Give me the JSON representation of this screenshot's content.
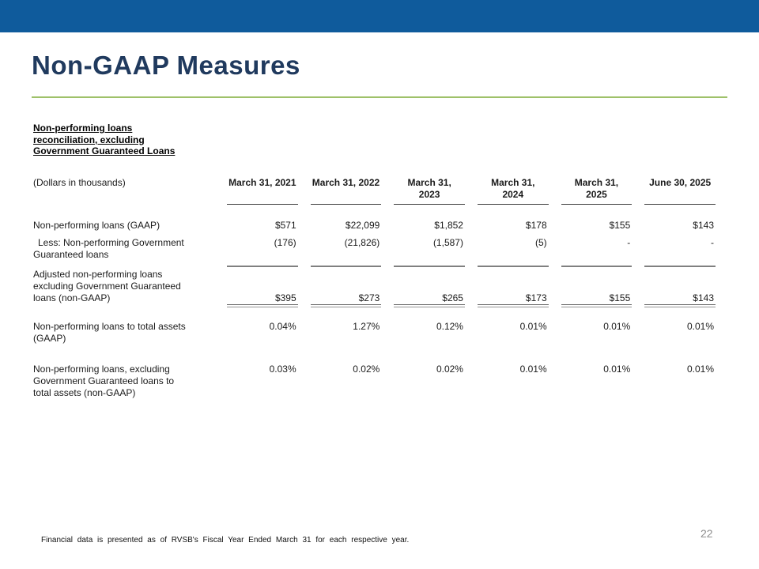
{
  "slide": {
    "title": "Non-GAAP Measures",
    "page_number": "22",
    "footnote": "Financial data is presented as of RVSB's Fiscal Year Ended March 31 for each respective year.",
    "colors": {
      "top_bar": "#0f5b9c",
      "title": "#203a5e",
      "accent_line": "#9ec169",
      "page_number": "#8f8f8f"
    }
  },
  "table": {
    "section_header_lines": [
      "Non-performing loans",
      "reconciliation, excluding",
      "Government Guaranteed Loans"
    ],
    "units_label": "(Dollars in thousands)",
    "columns": [
      {
        "lines": [
          "March 31, 2021",
          ""
        ]
      },
      {
        "lines": [
          "March 31, 2022",
          ""
        ]
      },
      {
        "lines": [
          "March 31,",
          "2023"
        ]
      },
      {
        "lines": [
          "March 31,",
          "2024"
        ]
      },
      {
        "lines": [
          "March 31,",
          "2025"
        ]
      },
      {
        "lines": [
          "June 30, 2025",
          ""
        ]
      }
    ],
    "rows": [
      {
        "lines": [
          "Non-performing loans (GAAP)",
          "",
          ""
        ],
        "values": [
          "$571",
          "$22,099",
          "$1,852",
          "$178",
          "$155",
          "$143"
        ]
      },
      {
        "lines": [
          "Less: Non-performing Government",
          "Guaranteed loans",
          ""
        ],
        "values": [
          "(176)",
          "(21,826)",
          "(1,587)",
          "(5)",
          "-",
          "-"
        ]
      },
      {
        "lines": [
          "Adjusted non-performing loans",
          "excluding Government Guaranteed",
          "loans (non-GAAP)"
        ],
        "values": [
          "$395",
          "$273",
          "$265",
          "$173",
          "$155",
          "$143"
        ]
      },
      {
        "lines": [
          "Non-performing loans to total assets",
          "(GAAP)",
          ""
        ],
        "values": [
          "0.04%",
          "1.27%",
          "0.12%",
          "0.01%",
          "0.01%",
          "0.01%"
        ]
      },
      {
        "lines": [
          "Non-performing loans, excluding",
          "Government Guaranteed loans to",
          "total assets (non-GAAP)"
        ],
        "values": [
          "0.03%",
          "0.02%",
          "0.02%",
          "0.01%",
          "0.01%",
          "0.01%"
        ]
      }
    ]
  }
}
